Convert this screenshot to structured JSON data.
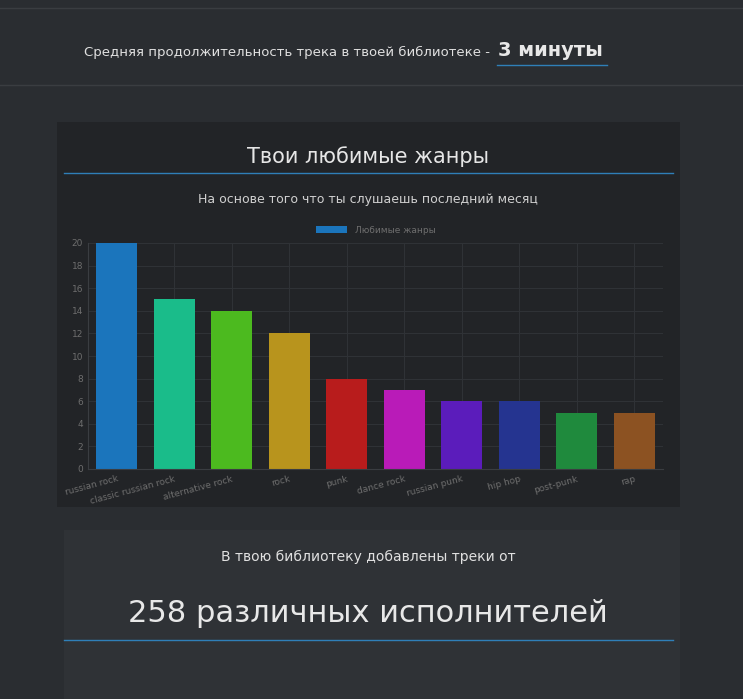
{
  "header": {
    "text": "Средняя продолжительность трека в твоей библиотеке -",
    "value": "3 минуты"
  },
  "chart_data": {
    "type": "bar",
    "title": "Твои любимые жанры",
    "subtitle": "На основе того что ты слушаешь последний месяц",
    "categories": [
      "russian rock",
      "classic russian rock",
      "alternative rock",
      "rock",
      "punk",
      "dance rock",
      "russian punk",
      "hip hop",
      "post-punk",
      "rap"
    ],
    "series": [
      {
        "name": "Любимые жанры",
        "color": "#1b75bc",
        "values": [
          20,
          15,
          14,
          12,
          8,
          7,
          6,
          6,
          5,
          5
        ]
      }
    ],
    "colors": [
      "#1b75bc",
      "#1abc8a",
      "#4cba1f",
      "#b8941d",
      "#b81c1c",
      "#b91bb8",
      "#5b1cbb",
      "#253490",
      "#1f8a3d",
      "#8c5222"
    ],
    "ylim": [
      0,
      20
    ],
    "yticks": [
      0,
      2,
      4,
      6,
      8,
      10,
      12,
      14,
      16,
      18,
      20
    ],
    "grid": true,
    "legend": "top"
  },
  "footer": {
    "text": "В твою библиотеку добавлены треки от",
    "value": "258 различных исполнителей"
  }
}
